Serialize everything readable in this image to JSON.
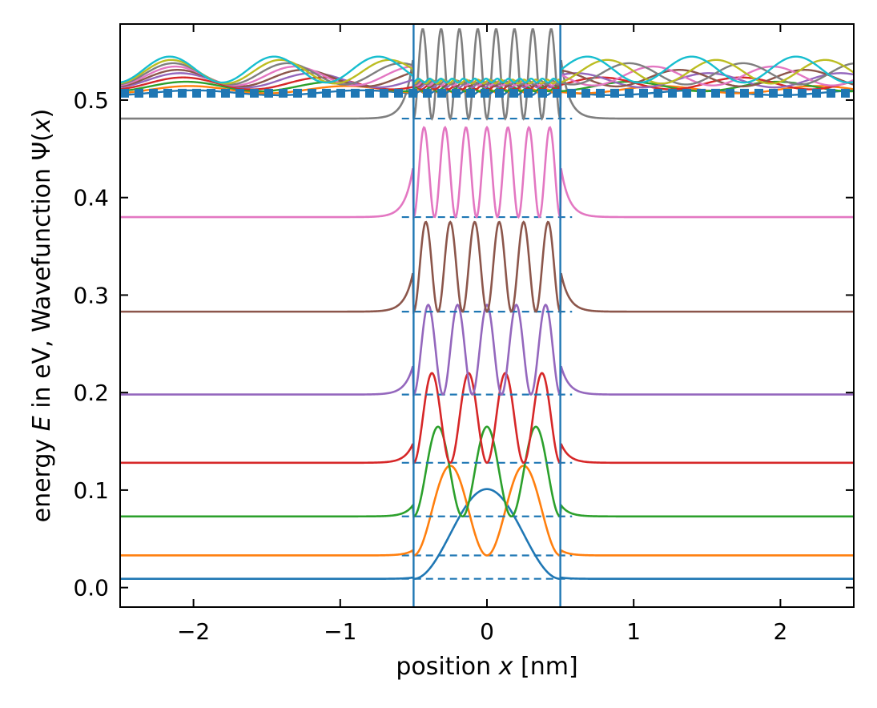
{
  "chart_data": {
    "type": "line",
    "title": "",
    "xlabel": {
      "pre": "position ",
      "var": "x",
      "post": " [nm]"
    },
    "ylabel": {
      "pre": "energy ",
      "var": "E",
      "mid": " in eV, Wavefunction Ψ(",
      "var2": "x",
      "post": ")"
    },
    "xlim": [
      -2.5,
      2.5
    ],
    "ylim": [
      -0.02,
      0.578
    ],
    "xticks": [
      -2,
      -1,
      0,
      1,
      2
    ],
    "xtick_labels": [
      "−2",
      "−1",
      "0",
      "1",
      "2"
    ],
    "yticks": [
      0.0,
      0.1,
      0.2,
      0.3,
      0.4,
      0.5
    ],
    "ytick_labels": [
      "0.0",
      "0.1",
      "0.2",
      "0.3",
      "0.4",
      "0.5"
    ],
    "grid": false,
    "well": {
      "left": -0.5,
      "right": 0.5,
      "color": "#1f77b4"
    },
    "amplitude": 0.092,
    "bound_states": [
      {
        "n": 1,
        "energy": 0.009,
        "color": "#1f77b4"
      },
      {
        "n": 2,
        "energy": 0.033,
        "color": "#ff7f0e"
      },
      {
        "n": 3,
        "energy": 0.073,
        "color": "#2ca02c"
      },
      {
        "n": 4,
        "energy": 0.128,
        "color": "#d62728"
      },
      {
        "n": 5,
        "energy": 0.198,
        "color": "#9467bd"
      },
      {
        "n": 6,
        "energy": 0.283,
        "color": "#8c564b"
      },
      {
        "n": 7,
        "energy": 0.38,
        "color": "#e377c2"
      },
      {
        "n": 8,
        "energy": 0.481,
        "color": "#7f7f7f"
      }
    ],
    "continuum_states": [
      {
        "energy": 0.505,
        "color": "#1f77b4"
      },
      {
        "energy": 0.507,
        "color": "#ff7f0e"
      },
      {
        "energy": 0.509,
        "color": "#2ca02c"
      },
      {
        "energy": 0.511,
        "color": "#d62728"
      },
      {
        "energy": 0.513,
        "color": "#9467bd"
      },
      {
        "energy": 0.514,
        "color": "#8c564b"
      },
      {
        "energy": 0.515,
        "color": "#e377c2"
      },
      {
        "energy": 0.516,
        "color": "#7f7f7f"
      },
      {
        "energy": 0.517,
        "color": "#bcbd22"
      },
      {
        "energy": 0.518,
        "color": "#17becf"
      }
    ],
    "continuum_band": {
      "energy": 0.507,
      "color": "#1f77b4"
    }
  }
}
